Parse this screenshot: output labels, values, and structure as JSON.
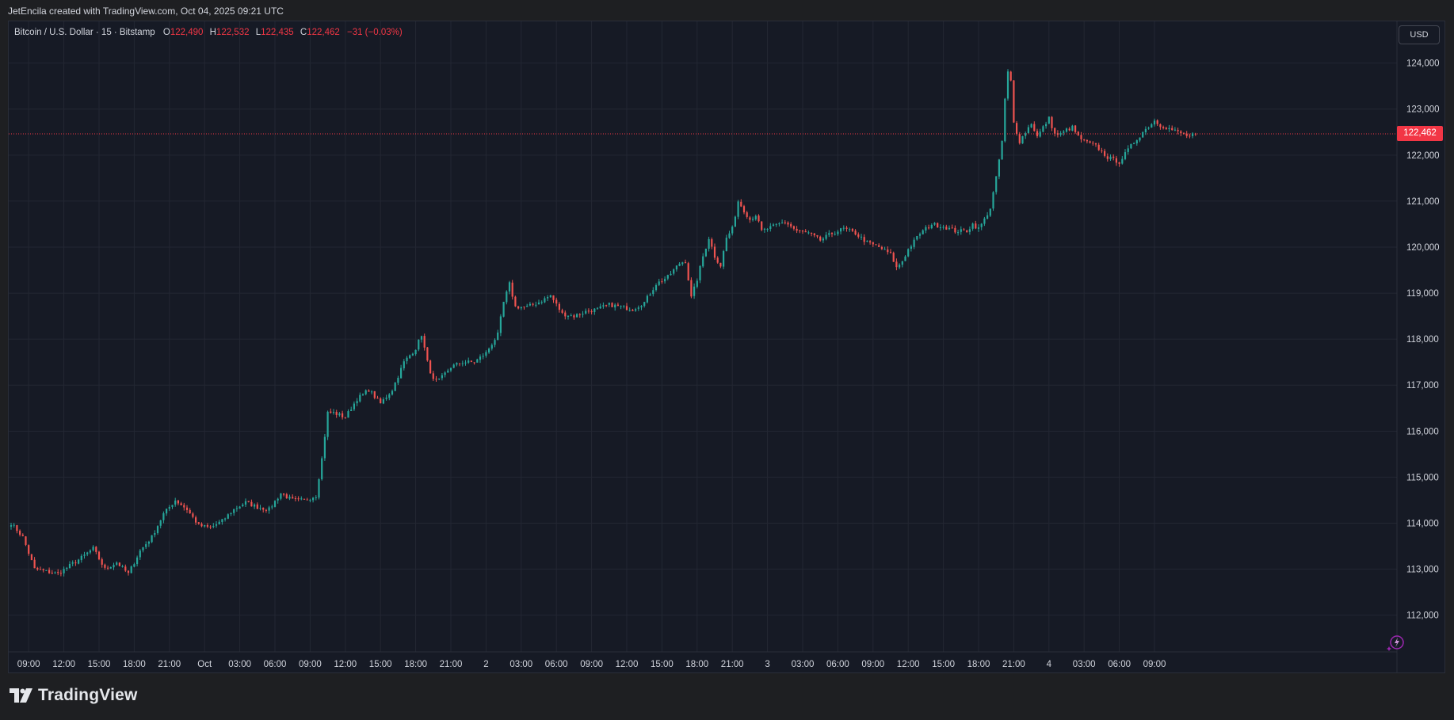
{
  "header": {
    "credit": "JetEncila created with TradingView.com, Oct 04, 2025 09:21 UTC"
  },
  "legend": {
    "symbol": "Bitcoin / U.S. Dollar · 15 · Bitstamp",
    "open_key": "O",
    "open": "122,490",
    "high_key": "H",
    "high": "122,532",
    "low_key": "L",
    "low": "122,435",
    "close_key": "C",
    "close": "122,462",
    "change": "−31 (−0.03%)"
  },
  "currency": "USD",
  "last_price_label": "122,462",
  "brand": {
    "name": "TradingView",
    "logo_icon": "tradingview-logo-icon"
  },
  "colors": {
    "up": "#26a69a",
    "down": "#ef5350",
    "background": "#161a25",
    "grid": "#232733",
    "last_price": "#f23645"
  },
  "chart_data": {
    "type": "candlestick",
    "interval": "15",
    "y_axis": {
      "min": 111650,
      "max": 124700,
      "ticks": [
        112000,
        113000,
        114000,
        115000,
        116000,
        117000,
        118000,
        119000,
        120000,
        121000,
        122000,
        123000,
        124000
      ],
      "tick_labels": [
        "112,000",
        "113,000",
        "114,000",
        "115,000",
        "116,000",
        "117,000",
        "118,000",
        "119,000",
        "120,000",
        "121,000",
        "122,000",
        "123,000",
        "124,000"
      ]
    },
    "x_axis": {
      "start": "Sep 30 07:30",
      "end": "Oct 4 09:45",
      "tick_labels": [
        "09:00",
        "12:00",
        "15:00",
        "18:00",
        "21:00",
        "Oct",
        "03:00",
        "06:00",
        "09:00",
        "12:00",
        "15:00",
        "18:00",
        "21:00",
        "2",
        "03:00",
        "06:00",
        "09:00",
        "12:00",
        "15:00",
        "18:00",
        "21:00",
        "3",
        "03:00",
        "06:00",
        "09:00",
        "12:00",
        "15:00",
        "18:00",
        "21:00",
        "4",
        "03:00",
        "06:00",
        "09:00"
      ],
      "tick_hours": [
        1.5,
        4.5,
        7.5,
        10.5,
        13.5,
        16.5,
        19.5,
        22.5,
        25.5,
        28.5,
        31.5,
        34.5,
        37.5,
        40.5,
        43.5,
        46.5,
        49.5,
        52.5,
        55.5,
        58.5,
        61.5,
        64.5,
        67.5,
        70.5,
        73.5,
        76.5,
        79.5,
        82.5,
        85.5,
        88.5,
        91.5,
        94.5,
        97.5
      ]
    },
    "grid": true,
    "last_price": 122462,
    "anchors": [
      [
        0,
        114000
      ],
      [
        4,
        113700
      ],
      [
        8,
        113000
      ],
      [
        12,
        112950
      ],
      [
        16,
        112900
      ],
      [
        24,
        113250
      ],
      [
        28,
        113450
      ],
      [
        32,
        113000
      ],
      [
        36,
        113150
      ],
      [
        40,
        112900
      ],
      [
        44,
        113400
      ],
      [
        48,
        113700
      ],
      [
        52,
        114200
      ],
      [
        56,
        114500
      ],
      [
        60,
        114300
      ],
      [
        64,
        113950
      ],
      [
        68,
        113900
      ],
      [
        72,
        114050
      ],
      [
        76,
        114300
      ],
      [
        80,
        114450
      ],
      [
        84,
        114350
      ],
      [
        88,
        114300
      ],
      [
        92,
        114650
      ],
      [
        96,
        114500
      ],
      [
        100,
        114500
      ],
      [
        104,
        114600
      ],
      [
        106,
        115400
      ],
      [
        108,
        116400
      ],
      [
        110,
        116400
      ],
      [
        114,
        116300
      ],
      [
        118,
        116700
      ],
      [
        122,
        116900
      ],
      [
        126,
        116600
      ],
      [
        130,
        116900
      ],
      [
        134,
        117500
      ],
      [
        138,
        117800
      ],
      [
        140,
        118100
      ],
      [
        142,
        117500
      ],
      [
        144,
        117100
      ],
      [
        146,
        117100
      ],
      [
        150,
        117400
      ],
      [
        154,
        117500
      ],
      [
        158,
        117500
      ],
      [
        162,
        117700
      ],
      [
        166,
        118100
      ],
      [
        168,
        118800
      ],
      [
        170,
        119200
      ],
      [
        172,
        118700
      ],
      [
        176,
        118700
      ],
      [
        180,
        118800
      ],
      [
        184,
        118950
      ],
      [
        188,
        118550
      ],
      [
        192,
        118500
      ],
      [
        196,
        118600
      ],
      [
        200,
        118650
      ],
      [
        204,
        118750
      ],
      [
        208,
        118700
      ],
      [
        212,
        118650
      ],
      [
        216,
        118800
      ],
      [
        220,
        119200
      ],
      [
        224,
        119350
      ],
      [
        228,
        119650
      ],
      [
        230,
        119700
      ],
      [
        232,
        118900
      ],
      [
        234,
        119300
      ],
      [
        236,
        119800
      ],
      [
        238,
        120200
      ],
      [
        240,
        119800
      ],
      [
        242,
        119600
      ],
      [
        244,
        120200
      ],
      [
        246,
        120400
      ],
      [
        248,
        121000
      ],
      [
        250,
        120800
      ],
      [
        252,
        120600
      ],
      [
        254,
        120700
      ],
      [
        256,
        120350
      ],
      [
        260,
        120450
      ],
      [
        264,
        120550
      ],
      [
        268,
        120350
      ],
      [
        272,
        120300
      ],
      [
        276,
        120150
      ],
      [
        280,
        120300
      ],
      [
        284,
        120400
      ],
      [
        288,
        120300
      ],
      [
        292,
        120100
      ],
      [
        296,
        120000
      ],
      [
        300,
        119850
      ],
      [
        302,
        119550
      ],
      [
        304,
        119700
      ],
      [
        306,
        119950
      ],
      [
        310,
        120300
      ],
      [
        314,
        120500
      ],
      [
        318,
        120450
      ],
      [
        322,
        120350
      ],
      [
        326,
        120350
      ],
      [
        328,
        120500
      ],
      [
        330,
        120400
      ],
      [
        332,
        120600
      ],
      [
        334,
        120850
      ],
      [
        336,
        121500
      ],
      [
        338,
        122300
      ],
      [
        339,
        123200
      ],
      [
        340,
        123800
      ],
      [
        341,
        123600
      ],
      [
        342,
        122700
      ],
      [
        344,
        122300
      ],
      [
        346,
        122500
      ],
      [
        348,
        122700
      ],
      [
        350,
        122400
      ],
      [
        352,
        122600
      ],
      [
        354,
        122800
      ],
      [
        356,
        122450
      ],
      [
        358,
        122450
      ],
      [
        360,
        122550
      ],
      [
        362,
        122600
      ],
      [
        364,
        122400
      ],
      [
        366,
        122300
      ],
      [
        370,
        122200
      ],
      [
        374,
        121950
      ],
      [
        378,
        121850
      ],
      [
        382,
        122200
      ],
      [
        386,
        122500
      ],
      [
        390,
        122750
      ],
      [
        392,
        122650
      ],
      [
        396,
        122550
      ],
      [
        400,
        122450
      ],
      [
        402,
        122400
      ],
      [
        404,
        122462
      ]
    ]
  }
}
